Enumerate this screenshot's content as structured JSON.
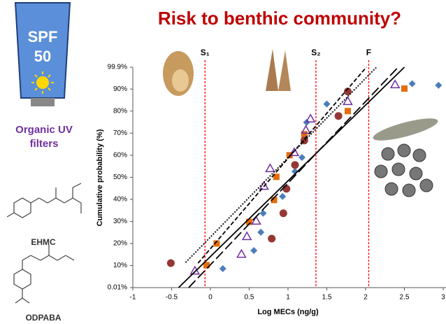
{
  "slide": {
    "tube_brand": "SPF",
    "tube_number": "50",
    "caption": "Organic UV filters",
    "molecule_1": "EHMC",
    "molecule_2": "ODPABA"
  },
  "chart_data": {
    "type": "scatter",
    "title": "Risk to benthic community?",
    "x_label": "Log MECs (ng/g)",
    "y_label": "Cumulative probability (%)",
    "xlim": [
      -1,
      3
    ],
    "xticks": [
      -1,
      -0.5,
      0,
      0.5,
      1,
      1.5,
      2,
      2.5,
      3
    ],
    "ylim": [
      0.01,
      99.9
    ],
    "yticks": [
      {
        "value": 0.01,
        "label": "0.01%"
      },
      {
        "value": 10,
        "label": "10%"
      },
      {
        "value": 20,
        "label": "20%"
      },
      {
        "value": 30,
        "label": "30%"
      },
      {
        "value": 40,
        "label": "40%"
      },
      {
        "value": 50,
        "label": "50%"
      },
      {
        "value": 60,
        "label": "60%"
      },
      {
        "value": 70,
        "label": "70%"
      },
      {
        "value": 80,
        "label": "80%"
      },
      {
        "value": 90,
        "label": "90%"
      },
      {
        "value": 99.9,
        "label": "99.9%"
      }
    ],
    "grid": false,
    "reference_lines": [
      {
        "label": "S₁",
        "x": -0.07,
        "color": "#ff0000"
      },
      {
        "label": "S₂",
        "x": 1.36,
        "color": "#ff0000"
      },
      {
        "label": "F",
        "x": 2.04,
        "color": "#ff0000"
      }
    ],
    "series": [
      {
        "marker": "diamond",
        "color": "#4a7ebb",
        "x": [
          0.16,
          0.56,
          0.65,
          0.68,
          0.93,
          1.09,
          1.18,
          1.24,
          1.5,
          2.6,
          2.94
        ],
        "values": [
          8.6,
          16.8,
          25.1,
          33.7,
          41.3,
          52.7,
          59,
          74.9,
          83.2,
          92.4,
          91.7
        ]
      },
      {
        "marker": "square",
        "color": "#e46c0a",
        "x": [
          -0.05,
          0.08,
          0.5,
          0.82,
          0.85,
          1.02,
          1.21,
          1.77,
          2.5
        ],
        "values": [
          10.2,
          20,
          29.8,
          39.7,
          50.2,
          60,
          69.5,
          80,
          90.2
        ]
      },
      {
        "marker": "triangle",
        "color": "#7030a0",
        "x": [
          -0.2,
          0.4,
          0.47,
          0.59,
          0.69,
          0.77,
          1.08,
          1.23,
          1.29,
          1.77,
          2.38
        ],
        "values": [
          7.6,
          15.2,
          23.2,
          30.2,
          46,
          54,
          61.3,
          71.4,
          76.5,
          84.4,
          92
        ]
      },
      {
        "marker": "circle",
        "color": "#953735",
        "x": [
          -0.51,
          0.79,
          0.94,
          0.98,
          1.09,
          1.21,
          1.65,
          1.77
        ],
        "values": [
          11.1,
          22.2,
          33.7,
          44.8,
          55.6,
          66.7,
          77.8,
          88.9
        ]
      },
      {
        "marker": "line",
        "dash": "solid",
        "color": "#000000",
        "x": [
          -0.41,
          2.5
        ],
        "values": [
          0.01,
          99.9
        ]
      },
      {
        "marker": "line",
        "dash": "long",
        "color": "#000000",
        "x": [
          -0.28,
          2.42
        ],
        "values": [
          0.01,
          99.9
        ]
      },
      {
        "marker": "line",
        "dash": "short",
        "color": "#000000",
        "x": [
          -0.16,
          2.01
        ],
        "values": [
          11.1,
          99.9
        ]
      },
      {
        "marker": "line",
        "dash": "dotted",
        "color": "#000000",
        "x": [
          -0.32,
          2.14
        ],
        "values": [
          11.4,
          99.9
        ]
      }
    ]
  }
}
